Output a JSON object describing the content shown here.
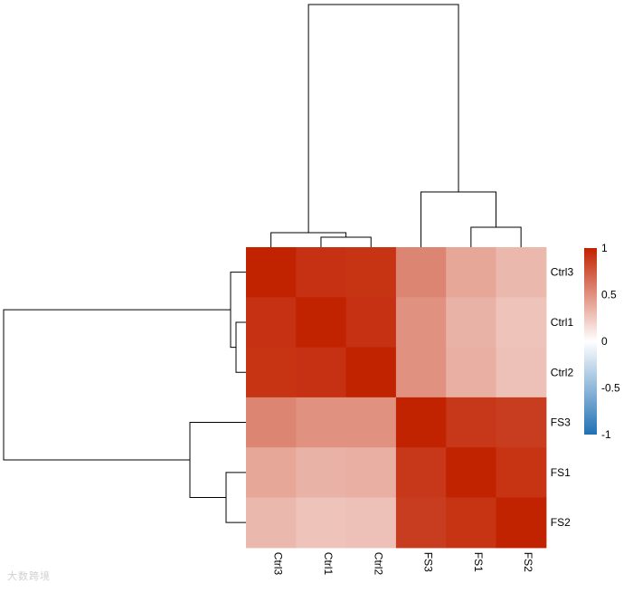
{
  "watermark": "大数跨境",
  "chart_data": {
    "type": "heatmap",
    "rows": [
      "Ctrl3",
      "Ctrl1",
      "Ctrl2",
      "FS3",
      "FS1",
      "FS2"
    ],
    "columns": [
      "Ctrl3",
      "Ctrl1",
      "Ctrl2",
      "FS3",
      "FS1",
      "FS2"
    ],
    "values": [
      [
        1.0,
        0.93,
        0.92,
        0.55,
        0.4,
        0.32
      ],
      [
        0.93,
        1.0,
        0.93,
        0.5,
        0.35,
        0.27
      ],
      [
        0.92,
        0.93,
        1.0,
        0.5,
        0.36,
        0.28
      ],
      [
        0.55,
        0.5,
        0.5,
        1.0,
        0.9,
        0.88
      ],
      [
        0.4,
        0.35,
        0.36,
        0.9,
        1.0,
        0.92
      ],
      [
        0.32,
        0.27,
        0.28,
        0.88,
        0.92,
        1.0
      ]
    ],
    "value_range": [
      -1,
      1
    ],
    "colorscale": {
      "low": "#2171b5",
      "mid": "#ffffff",
      "high": "#c12200"
    },
    "legend": {
      "ticks": [
        1,
        0.5,
        0,
        -0.5,
        -1
      ],
      "placement": "right"
    },
    "row_dendrogram": "left",
    "column_dendrogram": "top"
  }
}
